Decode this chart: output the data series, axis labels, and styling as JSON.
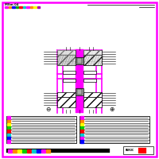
{
  "bg_color": "#ffffff",
  "magenta": "#ff00ff",
  "black": "#000000",
  "dark_gray": "#666666",
  "gray": "#999999",
  "light_gray": "#cccccc",
  "red": "#ff0000",
  "title1": "MSm 04",
  "header_colors": [
    "#ff00ff",
    "#ff8800",
    "#0000ff",
    "#00aa00",
    "#ff0000",
    "#00cccc",
    "#ff00ff",
    "#ff8800",
    "#ffff00",
    "#aa00aa"
  ],
  "table_row_colors_left": [
    "#ff00ff",
    "#ff8800",
    "#ffff00",
    "#00cc00",
    "#ff0000",
    "#00cccc",
    "#0000ff",
    "#ff00ff"
  ],
  "table_row_colors_right": [
    "#ff00ff",
    "#ff8800",
    "#ffff00",
    "#00cc00",
    "#ff0000",
    "#00cccc",
    "#ff00ff",
    "#0000ff"
  ],
  "bottom_dot_colors": [
    "#ff00ff",
    "#ff8800",
    "#ffff00",
    "#00cc00",
    "#ff0000",
    "#00cccc",
    "#0000ff",
    "#ff00ff",
    "#ff8800"
  ]
}
